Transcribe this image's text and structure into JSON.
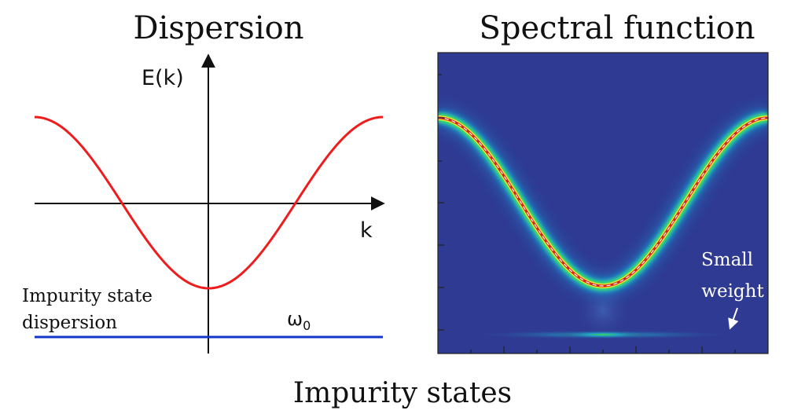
{
  "left_panel": {
    "title": "Dispersion",
    "y_axis_label": "E(k)",
    "x_axis_label": "k",
    "impurity_label_line1": "Impurity state",
    "impurity_label_line2": "dispersion",
    "omega_label": "ω",
    "omega_subscript": "0",
    "band_color": "#ee1c1c",
    "impurity_color": "#1436c8"
  },
  "right_panel": {
    "title": "Spectral function",
    "annotation_line1": "Small",
    "annotation_line2": "weight",
    "background_color": "#2f3a92"
  },
  "caption": "Impurity states"
}
